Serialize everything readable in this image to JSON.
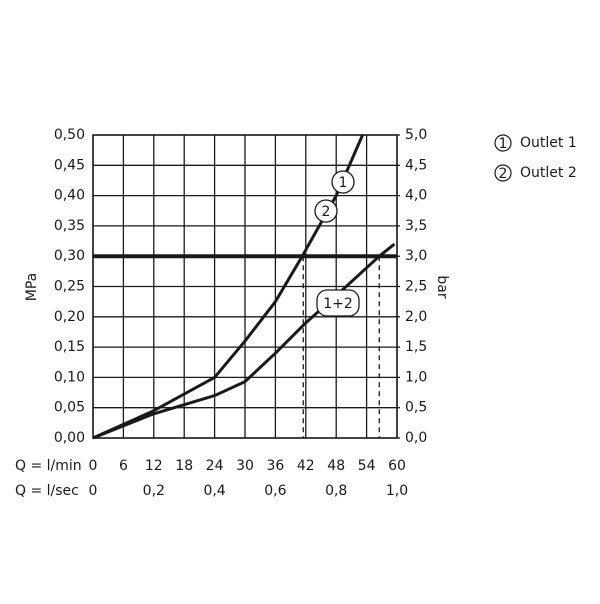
{
  "chart_data": {
    "type": "line",
    "xlabel": "Q = l/min",
    "x2label": "Q = l/sec",
    "ylabel": "MPa",
    "y2label": "bar",
    "xlim": [
      0,
      60
    ],
    "xticks": [
      0,
      6,
      12,
      18,
      24,
      30,
      36,
      42,
      48,
      54,
      60
    ],
    "x2lim": [
      0,
      1
    ],
    "x2ticks": [
      0,
      {
        "value": 0.2,
        "label": "0,2"
      },
      {
        "value": 0.4,
        "label": "0,4"
      },
      {
        "value": 0.6,
        "label": "0,6"
      },
      {
        "value": 0.8,
        "label": "0,8"
      },
      {
        "value": 1,
        "label": "1,0"
      }
    ],
    "ylim": [
      0,
      0.5
    ],
    "yticks": [
      {
        "value": 0,
        "label": "0,00"
      },
      {
        "value": 0.05,
        "label": "0,05"
      },
      {
        "value": 0.1,
        "label": "0,10"
      },
      {
        "value": 0.15,
        "label": "0,15"
      },
      {
        "value": 0.2,
        "label": "0,20"
      },
      {
        "value": 0.25,
        "label": "0,25"
      },
      {
        "value": 0.3,
        "label": "0,30"
      },
      {
        "value": 0.35,
        "label": "0,35"
      },
      {
        "value": 0.4,
        "label": "0,40"
      },
      {
        "value": 0.45,
        "label": "0,45"
      },
      {
        "value": 0.5,
        "label": "0,50"
      }
    ],
    "y2lim": [
      0,
      5
    ],
    "y2ticks": [
      {
        "value": 0,
        "label": "0,0"
      },
      {
        "value": 0.5,
        "label": "0,5"
      },
      {
        "value": 1,
        "label": "1,0"
      },
      {
        "value": 1.5,
        "label": "1,5"
      },
      {
        "value": 2,
        "label": "2,0"
      },
      {
        "value": 2.5,
        "label": "2,5"
      },
      {
        "value": 3,
        "label": "3,0"
      },
      {
        "value": 3.5,
        "label": "3,5"
      },
      {
        "value": 4,
        "label": "4,0"
      },
      {
        "value": 4.5,
        "label": "4,5"
      },
      {
        "value": 5,
        "label": "5,0"
      }
    ],
    "grid": true,
    "reference_line": 0.3,
    "markers_x": [
      41.5,
      56.5
    ],
    "series": [
      {
        "name": "1",
        "labels": [
          "1",
          "2"
        ],
        "color": "#1a1a1a",
        "x": [
          0,
          12,
          24,
          30,
          36,
          41.3,
          48,
          53.2
        ],
        "values": [
          0,
          0.045,
          0.1,
          0.16,
          0.225,
          0.3,
          0.4,
          0.5
        ]
      },
      {
        "name": "1+2",
        "labels": [
          "1+2"
        ],
        "color": "#1a1a1a",
        "x": [
          0,
          12,
          24,
          30,
          36,
          42,
          48,
          56.5,
          59.5
        ],
        "values": [
          0,
          0.04,
          0.07,
          0.093,
          0.14,
          0.19,
          0.235,
          0.3,
          0.32
        ]
      }
    ],
    "legend": [
      {
        "symbol": "1",
        "text": "Outlet 1"
      },
      {
        "symbol": "2",
        "text": "Outlet 2"
      }
    ]
  }
}
